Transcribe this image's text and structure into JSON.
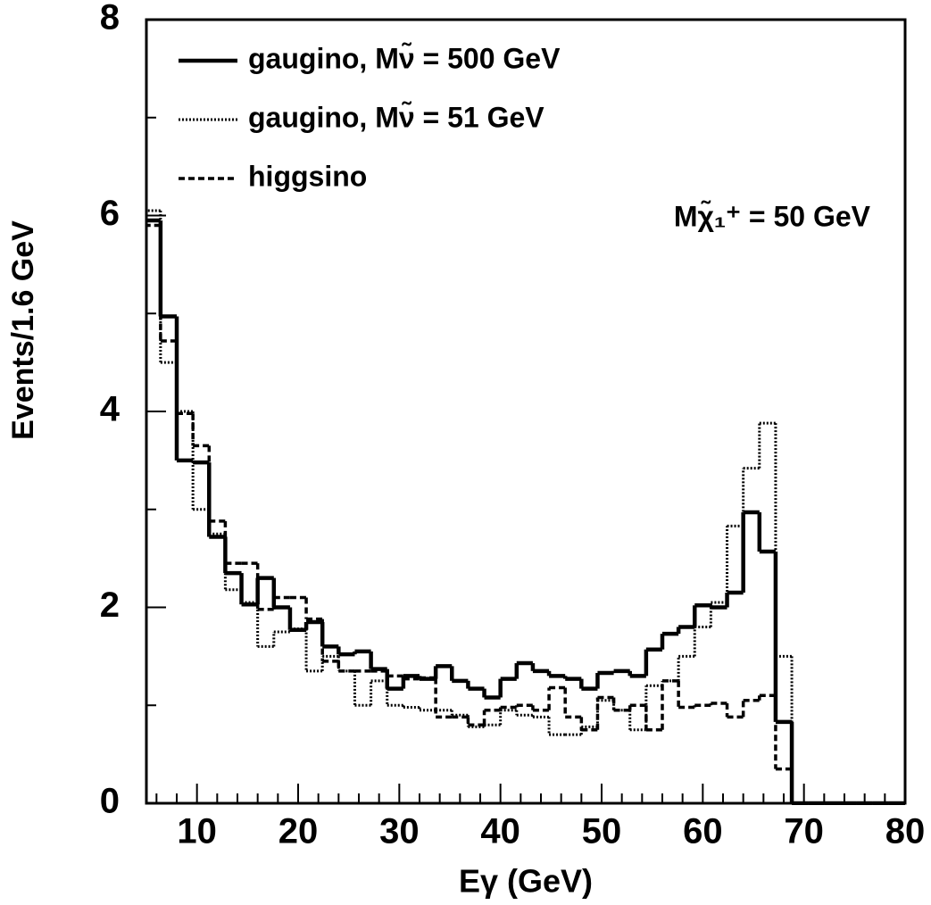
{
  "chart_data": {
    "type": "histogram",
    "xlabel": "Eγ (GeV)",
    "ylabel": "Events/1.6 GeV",
    "annotation": "Mχ̃₁⁺ = 50 GeV",
    "xlim": [
      5,
      80
    ],
    "ylim": [
      0,
      8
    ],
    "xticks": [
      10,
      20,
      30,
      40,
      50,
      60,
      70,
      80
    ],
    "yticks": [
      0,
      2,
      4,
      6,
      8
    ],
    "xticks_minor": [
      6,
      8,
      12,
      14,
      16,
      18,
      22,
      24,
      26,
      28,
      32,
      34,
      36,
      38,
      42,
      44,
      46,
      48,
      52,
      54,
      56,
      58,
      62,
      64,
      66,
      68,
      72,
      74,
      76,
      78
    ],
    "yticks_minor": [
      1,
      3,
      5,
      7
    ],
    "legend": "upper left",
    "bins": [
      4.8,
      6.4,
      8.0,
      9.6,
      11.2,
      12.8,
      14.4,
      16.0,
      17.6,
      19.2,
      20.8,
      22.4,
      24.0,
      25.6,
      27.2,
      28.8,
      30.4,
      32.0,
      33.6,
      35.2,
      36.8,
      38.4,
      40.0,
      41.6,
      43.2,
      44.8,
      46.4,
      48.0,
      49.6,
      51.2,
      52.8,
      54.4,
      56.0,
      57.6,
      59.2,
      60.8,
      62.4,
      64.0,
      65.6,
      67.2,
      68.8,
      70.4,
      72.0,
      73.6,
      75.2,
      76.8,
      78.4,
      80.0
    ],
    "series": [
      {
        "name": "gaugino, Mν̃ = 500 GeV",
        "color": "#000000",
        "linestyle": "solid",
        "values": [
          5.95,
          4.97,
          3.5,
          3.48,
          2.72,
          2.35,
          2.03,
          2.3,
          2.0,
          1.77,
          1.85,
          1.6,
          1.52,
          1.55,
          1.37,
          1.17,
          1.3,
          1.27,
          1.4,
          1.25,
          1.17,
          1.08,
          1.27,
          1.43,
          1.35,
          1.3,
          1.27,
          1.17,
          1.33,
          1.35,
          1.3,
          1.57,
          1.73,
          1.8,
          2.02,
          2.0,
          2.15,
          2.97,
          2.57,
          0.83,
          0,
          0,
          0,
          0,
          0,
          0,
          0
        ]
      },
      {
        "name": "gaugino, Mν̃ = 51 GeV",
        "color": "#000000",
        "linestyle": "dotted",
        "values": [
          6.05,
          4.5,
          4.0,
          3.0,
          2.75,
          2.18,
          2.05,
          1.6,
          1.75,
          1.78,
          1.35,
          1.5,
          1.35,
          1.0,
          1.25,
          1.0,
          0.98,
          0.95,
          0.95,
          0.9,
          0.78,
          0.8,
          0.95,
          0.9,
          0.88,
          0.7,
          0.7,
          0.78,
          1.05,
          0.95,
          0.75,
          1.2,
          1.25,
          1.5,
          1.8,
          2.05,
          2.83,
          3.42,
          3.88,
          1.5,
          0,
          0,
          0,
          0,
          0,
          0,
          0
        ]
      },
      {
        "name": "higgsino",
        "color": "#000000",
        "linestyle": "dashed",
        "values": [
          5.9,
          4.72,
          3.98,
          3.65,
          2.88,
          2.45,
          2.45,
          1.98,
          2.1,
          2.1,
          1.88,
          1.45,
          1.35,
          1.35,
          1.35,
          1.3,
          1.27,
          1.28,
          0.88,
          0.88,
          0.8,
          0.95,
          0.98,
          1.0,
          0.95,
          1.18,
          0.88,
          0.75,
          1.08,
          0.95,
          1.0,
          0.75,
          1.25,
          0.98,
          1.0,
          1.02,
          0.88,
          1.05,
          1.1,
          0.35,
          0,
          0,
          0,
          0,
          0,
          0,
          0
        ]
      }
    ]
  }
}
